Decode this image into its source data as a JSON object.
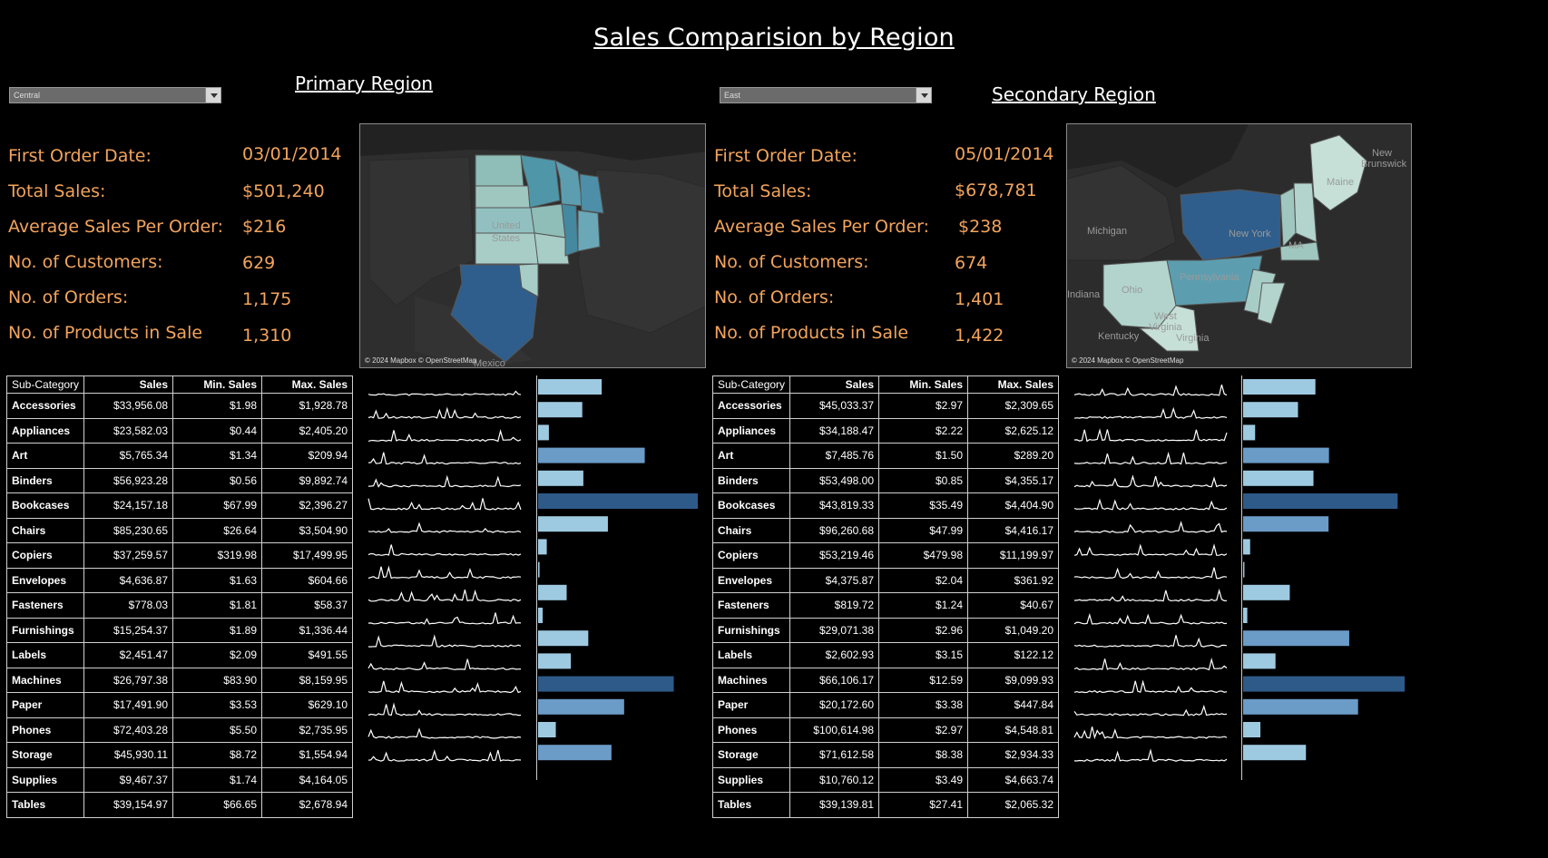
{
  "title": "Sales Comparision by Region",
  "primary": {
    "label": "Primary Region",
    "dropdown_value": "Central",
    "kpi_labels": [
      "First Order Date:",
      "Total Sales:",
      "Average Sales Per Order:",
      "No. of Customers:",
      "No. of Orders:",
      "No. of Products in Sale"
    ],
    "kpi_values": [
      "03/01/2014",
      "$501,240",
      "$216",
      "629",
      "1,175",
      "1,310"
    ],
    "map_credit": "© 2024 Mapbox © OpenStreetMap",
    "map_labels": [
      "United",
      "States",
      "Mexico"
    ],
    "table_headers": [
      "Sub-Category",
      "Sales",
      "Min. Sales",
      "Max. Sales"
    ],
    "rows": [
      {
        "cat": "Accessories",
        "sales": "$33,956.08",
        "min": "$1.98",
        "max": "$1,928.78"
      },
      {
        "cat": "Appliances",
        "sales": "$23,582.03",
        "min": "$0.44",
        "max": "$2,405.20"
      },
      {
        "cat": "Art",
        "sales": "$5,765.34",
        "min": "$1.34",
        "max": "$209.94"
      },
      {
        "cat": "Binders",
        "sales": "$56,923.28",
        "min": "$0.56",
        "max": "$9,892.74"
      },
      {
        "cat": "Bookcases",
        "sales": "$24,157.18",
        "min": "$67.99",
        "max": "$2,396.27"
      },
      {
        "cat": "Chairs",
        "sales": "$85,230.65",
        "min": "$26.64",
        "max": "$3,504.90"
      },
      {
        "cat": "Copiers",
        "sales": "$37,259.57",
        "min": "$319.98",
        "max": "$17,499.95"
      },
      {
        "cat": "Envelopes",
        "sales": "$4,636.87",
        "min": "$1.63",
        "max": "$604.66"
      },
      {
        "cat": "Fasteners",
        "sales": "$778.03",
        "min": "$1.81",
        "max": "$58.37"
      },
      {
        "cat": "Furnishings",
        "sales": "$15,254.37",
        "min": "$1.89",
        "max": "$1,336.44"
      },
      {
        "cat": "Labels",
        "sales": "$2,451.47",
        "min": "$2.09",
        "max": "$491.55"
      },
      {
        "cat": "Machines",
        "sales": "$26,797.38",
        "min": "$83.90",
        "max": "$8,159.95"
      },
      {
        "cat": "Paper",
        "sales": "$17,491.90",
        "min": "$3.53",
        "max": "$629.10"
      },
      {
        "cat": "Phones",
        "sales": "$72,403.28",
        "min": "$5.50",
        "max": "$2,735.95"
      },
      {
        "cat": "Storage",
        "sales": "$45,930.11",
        "min": "$8.72",
        "max": "$1,554.94"
      },
      {
        "cat": "Supplies",
        "sales": "$9,467.37",
        "min": "$1.74",
        "max": "$4,164.05"
      },
      {
        "cat": "Tables",
        "sales": "$39,154.97",
        "min": "$66.65",
        "max": "$2,678.94"
      }
    ],
    "bar_values": [
      33956.08,
      23582.03,
      5765.34,
      56923.28,
      24157.18,
      85230.65,
      37259.57,
      4636.87,
      778.03,
      15254.37,
      2451.47,
      26797.38,
      17491.9,
      72403.28,
      45930.11,
      9467.37,
      39154.97
    ]
  },
  "secondary": {
    "label": "Secondary Region",
    "dropdown_value": "East",
    "kpi_labels": [
      "First Order Date:",
      "Total Sales:",
      "Average Sales Per Order:",
      "No. of Customers:",
      "No. of Orders:",
      "No. of Products in Sale"
    ],
    "kpi_values": [
      "05/01/2014",
      "$678,781",
      "$238",
      "674",
      "1,401",
      "1,422"
    ],
    "map_credit": "© 2024 Mapbox © OpenStreetMap",
    "map_labels": [
      "New",
      "Brunswick",
      "Maine",
      "Michigan",
      "New York",
      "Pennsylvania",
      "Ohio",
      "Indiana",
      "West",
      "Virginia",
      "Kentucky",
      "Virginia",
      "MA"
    ],
    "table_headers": [
      "Sub-Category",
      "Sales",
      "Min. Sales",
      "Max. Sales"
    ],
    "rows": [
      {
        "cat": "Accessories",
        "sales": "$45,033.37",
        "min": "$2.97",
        "max": "$2,309.65"
      },
      {
        "cat": "Appliances",
        "sales": "$34,188.47",
        "min": "$2.22",
        "max": "$2,625.12"
      },
      {
        "cat": "Art",
        "sales": "$7,485.76",
        "min": "$1.50",
        "max": "$289.20"
      },
      {
        "cat": "Binders",
        "sales": "$53,498.00",
        "min": "$0.85",
        "max": "$4,355.17"
      },
      {
        "cat": "Bookcases",
        "sales": "$43,819.33",
        "min": "$35.49",
        "max": "$4,404.90"
      },
      {
        "cat": "Chairs",
        "sales": "$96,260.68",
        "min": "$47.99",
        "max": "$4,416.17"
      },
      {
        "cat": "Copiers",
        "sales": "$53,219.46",
        "min": "$479.98",
        "max": "$11,199.97"
      },
      {
        "cat": "Envelopes",
        "sales": "$4,375.87",
        "min": "$2.04",
        "max": "$361.92"
      },
      {
        "cat": "Fasteners",
        "sales": "$819.72",
        "min": "$1.24",
        "max": "$40.67"
      },
      {
        "cat": "Furnishings",
        "sales": "$29,071.38",
        "min": "$2.96",
        "max": "$1,049.20"
      },
      {
        "cat": "Labels",
        "sales": "$2,602.93",
        "min": "$3.15",
        "max": "$122.12"
      },
      {
        "cat": "Machines",
        "sales": "$66,106.17",
        "min": "$12.59",
        "max": "$9,099.93"
      },
      {
        "cat": "Paper",
        "sales": "$20,172.60",
        "min": "$3.38",
        "max": "$447.84"
      },
      {
        "cat": "Phones",
        "sales": "$100,614.98",
        "min": "$2.97",
        "max": "$4,548.81"
      },
      {
        "cat": "Storage",
        "sales": "$71,612.58",
        "min": "$8.38",
        "max": "$2,934.33"
      },
      {
        "cat": "Supplies",
        "sales": "$10,760.12",
        "min": "$3.49",
        "max": "$4,663.74"
      },
      {
        "cat": "Tables",
        "sales": "$39,139.81",
        "min": "$27.41",
        "max": "$2,065.32"
      }
    ],
    "bar_values": [
      45033.37,
      34188.47,
      7485.76,
      53498.0,
      43819.33,
      96260.68,
      53219.46,
      4375.87,
      819.72,
      29071.38,
      2602.93,
      66106.17,
      20172.6,
      100614.98,
      71612.58,
      10760.12,
      39139.81
    ]
  },
  "colors": {
    "kpi": "#f3a45c",
    "bar_light": "#9ecae1",
    "bar_mid": "#6b9bc7",
    "bar_dark": "#2e5a8a",
    "map_bg": "#2a2a2a",
    "map_land": "#3a3a3a"
  }
}
